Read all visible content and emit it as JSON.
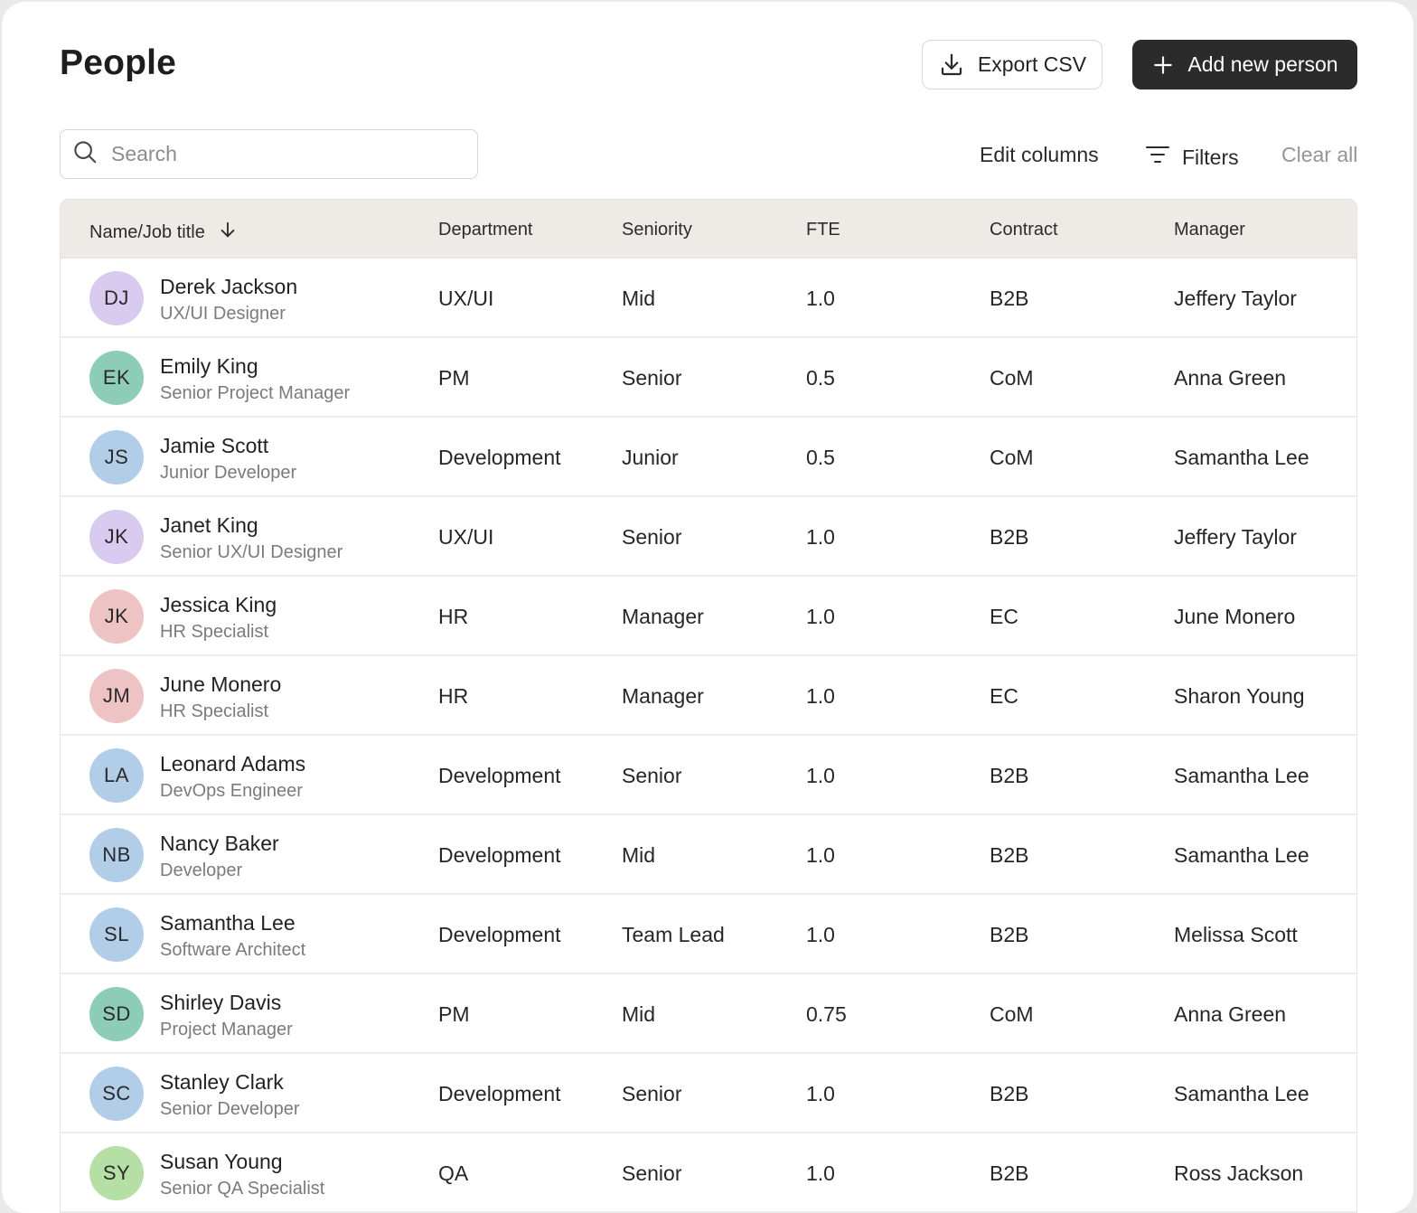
{
  "page": {
    "title": "People"
  },
  "header": {
    "export_label": "Export CSV",
    "add_label": "Add new person"
  },
  "toolbar": {
    "search_placeholder": "Search",
    "edit_columns_label": "Edit columns",
    "filters_label": "Filters",
    "clear_label": "Clear all"
  },
  "table": {
    "columns": {
      "name": "Name/Job title",
      "department": "Department",
      "seniority": "Seniority",
      "fte": "FTE",
      "contract": "Contract",
      "manager": "Manager"
    },
    "rows": [
      {
        "initials": "DJ",
        "name": "Derek Jackson",
        "title": "UX/UI Designer",
        "department": "UX/UI",
        "seniority": "Mid",
        "fte": "1.0",
        "contract": "B2B",
        "manager": "Jeffery Taylor",
        "avatar_color": "#d9cbf0"
      },
      {
        "initials": "EK",
        "name": "Emily King",
        "title": "Senior Project Manager",
        "department": "PM",
        "seniority": "Senior",
        "fte": "0.5",
        "contract": "CoM",
        "manager": "Anna Green",
        "avatar_color": "#8dcdb8"
      },
      {
        "initials": "JS",
        "name": "Jamie Scott",
        "title": "Junior Developer",
        "department": "Development",
        "seniority": "Junior",
        "fte": "0.5",
        "contract": "CoM",
        "manager": "Samantha Lee",
        "avatar_color": "#b2cde8"
      },
      {
        "initials": "JK",
        "name": "Janet King",
        "title": "Senior UX/UI Designer",
        "department": "UX/UI",
        "seniority": "Senior",
        "fte": "1.0",
        "contract": "B2B",
        "manager": "Jeffery Taylor",
        "avatar_color": "#d9cbf0"
      },
      {
        "initials": "JK",
        "name": "Jessica King",
        "title": "HR Specialist",
        "department": "HR",
        "seniority": "Manager",
        "fte": "1.0",
        "contract": "EC",
        "manager": "June Monero",
        "avatar_color": "#eec3c3"
      },
      {
        "initials": "JM",
        "name": "June Monero",
        "title": "HR Specialist",
        "department": "HR",
        "seniority": "Manager",
        "fte": "1.0",
        "contract": "EC",
        "manager": "Sharon Young",
        "avatar_color": "#eec3c3"
      },
      {
        "initials": "LA",
        "name": "Leonard Adams",
        "title": "DevOps Engineer",
        "department": "Development",
        "seniority": "Senior",
        "fte": "1.0",
        "contract": "B2B",
        "manager": "Samantha Lee",
        "avatar_color": "#b2cde8"
      },
      {
        "initials": "NB",
        "name": "Nancy Baker",
        "title": "Developer",
        "department": "Development",
        "seniority": "Mid",
        "fte": "1.0",
        "contract": "B2B",
        "manager": "Samantha Lee",
        "avatar_color": "#b2cde8"
      },
      {
        "initials": "SL",
        "name": "Samantha Lee",
        "title": "Software Architect",
        "department": "Development",
        "seniority": "Team Lead",
        "fte": "1.0",
        "contract": "B2B",
        "manager": "Melissa Scott",
        "avatar_color": "#b2cde8"
      },
      {
        "initials": "SD",
        "name": "Shirley Davis",
        "title": "Project Manager",
        "department": "PM",
        "seniority": "Mid",
        "fte": "0.75",
        "contract": "CoM",
        "manager": "Anna Green",
        "avatar_color": "#8dcdb8"
      },
      {
        "initials": "SC",
        "name": "Stanley Clark",
        "title": "Senior Developer",
        "department": "Development",
        "seniority": "Senior",
        "fte": "1.0",
        "contract": "B2B",
        "manager": "Samantha Lee",
        "avatar_color": "#b2cde8"
      },
      {
        "initials": "SY",
        "name": "Susan Young",
        "title": "Senior QA Specialist",
        "department": "QA",
        "seniority": "Senior",
        "fte": "1.0",
        "contract": "B2B",
        "manager": "Ross Jackson",
        "avatar_color": "#b6dfa6"
      }
    ]
  }
}
